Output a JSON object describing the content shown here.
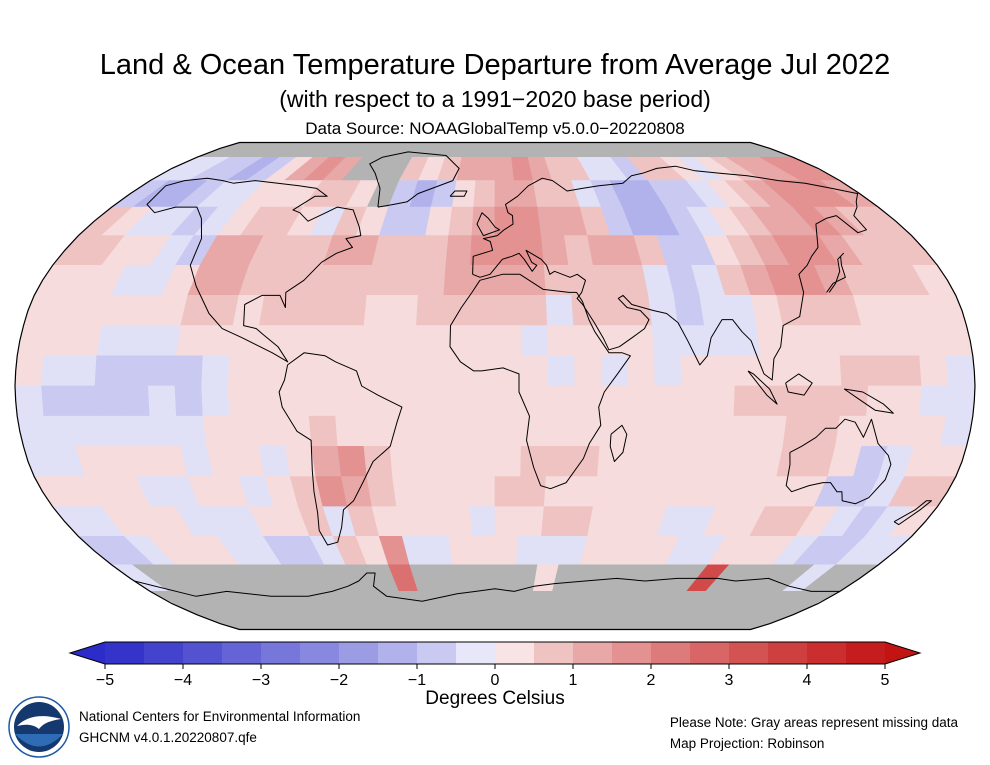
{
  "title": "Land & Ocean Temperature Departure from Average Jul 2022",
  "subtitle": "(with respect to a 1991−2020 base period)",
  "data_source": "Data Source: NOAAGlobalTemp v5.0.0−20220808",
  "colorbar": {
    "label": "Degrees Celsius",
    "min": -5,
    "max": 5,
    "ticks": [
      "−5",
      "−4",
      "−3",
      "−2",
      "−1",
      "0",
      "1",
      "2",
      "3",
      "4",
      "5"
    ],
    "negative_end_color": "#2c2cc8",
    "positive_end_color": "#c31414",
    "missing_color": "#b3b3b3"
  },
  "footer": {
    "left_line1": "National Centers for Environmental Information",
    "left_line2": "GHCNM v4.0.1.20220807.qfe",
    "right_line1": "Please Note: Gray areas represent missing data",
    "right_line2": "Map Projection: Robinson",
    "logo": "noaa-logo"
  },
  "chart_data": {
    "type": "heatmap",
    "title": "Land & Ocean Temperature Departure from Average Jul 2022",
    "period": "Jul 2022",
    "base_period": "1991-2020",
    "units": "Degrees Celsius",
    "projection": "Robinson",
    "colorbar_range": [
      -5,
      5
    ],
    "missing_color": "#b3b3b3",
    "notes": "Gray areas represent missing data; grid is a coarse 10-degree reconstruction of anomaly pattern",
    "lat_start": 90,
    "lon_start": -180,
    "lat_step": 10,
    "lon_step": 10,
    "value_key": {
      "E": -2.5,
      "D": -1.75,
      "C": -1.25,
      "B": -0.75,
      "A": -0.35,
      "0": 0,
      "a": 0.35,
      "b": 0.75,
      "c": 1.25,
      "d": 1.75,
      "e": 2.5,
      "f": 3.5,
      "x": null
    },
    "grid_rows": [
      "xxxxxxxxxxxxxxxxxxxxxxxxxxxxxxxxxxxx",
      "AABBCBacdcxxxbabcccdcbbAABbbaAabccdd",
      "BCCBAAaaabbaxBCBabccbbABCCBBAabcdddc",
      "baAABAabbaAbaBBabcddccbBCCBAabccdcbb",
      "bbaaABccbbbccbbbcdddcbccbBBabcddcbbb",
      "aaaAAaccbbbbbbbbccccbbbbABAbcddcbbba",
      "aaaaaabbabbbbaabbbbbAbbbABAAabbbaaaa",
      "aaaAAAaaaaaaaaaaaaaAaaaaAAAAaaaaaaaa",
      "aAABBBBAaaaaaaaaaaaaAaAaAaaaaaabbbaA",
      "ABBBBABAaaaaaaaaaaaaaaaaaaabbbbbaaAA",
      "AAAAAAAaaaabaaaaaaaaaaaaaaaaabbaaaaA",
      "AAaaaaAaaAacdbaaaaabbbaaaaaaabbaBAaa",
      "aaaaAAaaAabdcbaaaabbaaaaaaaaaaaBBAbb",
      "AAaaaAAAaabAbaaaaAaabbaaaAAaabbaABAa",
      "BBAaaaAABBAbadAAaaaAAAaaaaAAaaaABBAA",
      "AxxxxxxxxxxxxexxxxxxaxxxxxxxfxxxxAxx",
      "xxxxxxxxxxxxxxxxxxxxxxxxxxxxxxxxxxxx",
      "xxxxxxxxxxxxxxxxxxxxxxxxxxxxxxxxxxxx"
    ]
  }
}
